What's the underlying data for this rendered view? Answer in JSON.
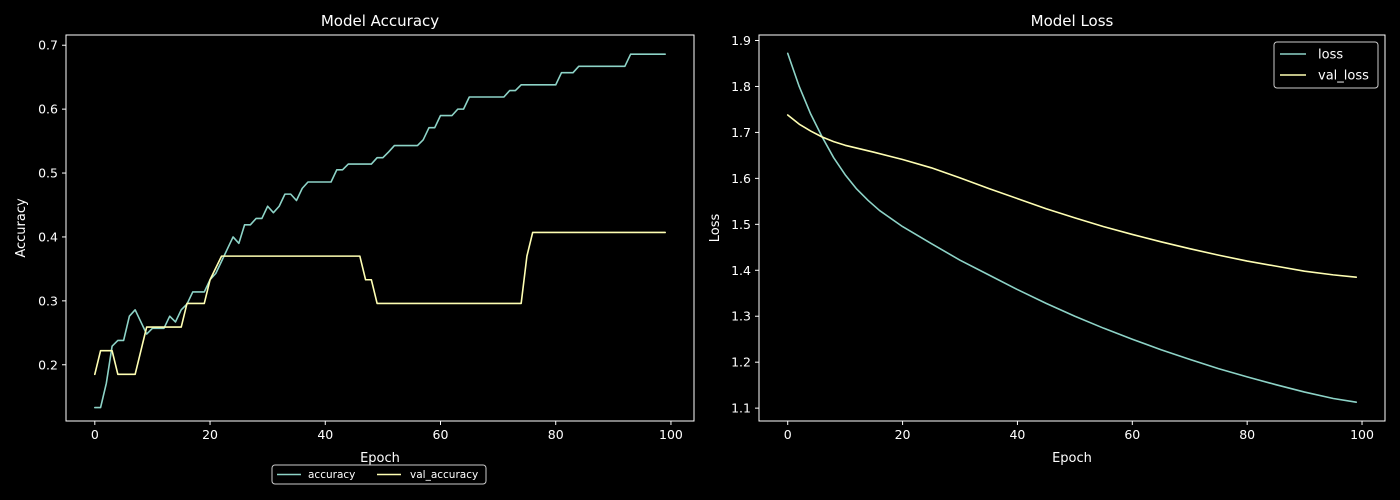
{
  "chart_data": [
    {
      "type": "line",
      "title": "Model Accuracy",
      "xlabel": "Epoch",
      "ylabel": "Accuracy",
      "xlim": [
        -5,
        104
      ],
      "ylim": [
        0.112,
        0.716
      ],
      "xticks": [
        0,
        20,
        40,
        60,
        80,
        100
      ],
      "yticks": [
        0.2,
        0.3,
        0.4,
        0.5,
        0.6,
        0.7
      ],
      "legend_placement": "below-center",
      "series": [
        {
          "name": "accuracy",
          "color": "#8dd3c7",
          "points": [
            [
              0,
              0.133
            ],
            [
              1,
              0.133
            ],
            [
              2,
              0.171
            ],
            [
              3,
              0.229
            ],
            [
              4,
              0.238
            ],
            [
              5,
              0.238
            ],
            [
              6,
              0.276
            ],
            [
              7,
              0.286
            ],
            [
              8,
              0.267
            ],
            [
              9,
              0.248
            ],
            [
              10,
              0.257
            ],
            [
              12,
              0.257
            ],
            [
              13,
              0.276
            ],
            [
              14,
              0.267
            ],
            [
              15,
              0.286
            ],
            [
              16,
              0.295
            ],
            [
              17,
              0.314
            ],
            [
              19,
              0.314
            ],
            [
              20,
              0.333
            ],
            [
              21,
              0.343
            ],
            [
              22,
              0.362
            ],
            [
              23,
              0.381
            ],
            [
              24,
              0.4
            ],
            [
              25,
              0.39
            ],
            [
              26,
              0.419
            ],
            [
              27,
              0.419
            ],
            [
              28,
              0.429
            ],
            [
              29,
              0.429
            ],
            [
              30,
              0.448
            ],
            [
              31,
              0.438
            ],
            [
              32,
              0.448
            ],
            [
              33,
              0.467
            ],
            [
              34,
              0.467
            ],
            [
              35,
              0.457
            ],
            [
              36,
              0.476
            ],
            [
              37,
              0.486
            ],
            [
              41,
              0.486
            ],
            [
              42,
              0.505
            ],
            [
              43,
              0.505
            ],
            [
              44,
              0.514
            ],
            [
              48,
              0.514
            ],
            [
              49,
              0.524
            ],
            [
              50,
              0.524
            ],
            [
              51,
              0.533
            ],
            [
              52,
              0.543
            ],
            [
              56,
              0.543
            ],
            [
              57,
              0.552
            ],
            [
              58,
              0.571
            ],
            [
              59,
              0.571
            ],
            [
              60,
              0.59
            ],
            [
              62,
              0.59
            ],
            [
              63,
              0.6
            ],
            [
              64,
              0.6
            ],
            [
              65,
              0.619
            ],
            [
              71,
              0.619
            ],
            [
              72,
              0.629
            ],
            [
              73,
              0.629
            ],
            [
              74,
              0.638
            ],
            [
              80,
              0.638
            ],
            [
              81,
              0.657
            ],
            [
              83,
              0.657
            ],
            [
              84,
              0.667
            ],
            [
              92,
              0.667
            ],
            [
              93,
              0.686
            ],
            [
              99,
              0.686
            ]
          ]
        },
        {
          "name": "val_accuracy",
          "color": "#ffffb3",
          "points": [
            [
              0,
              0.185
            ],
            [
              1,
              0.222
            ],
            [
              3,
              0.222
            ],
            [
              4,
              0.185
            ],
            [
              7,
              0.185
            ],
            [
              8,
              0.222
            ],
            [
              9,
              0.259
            ],
            [
              15,
              0.259
            ],
            [
              16,
              0.296
            ],
            [
              19,
              0.296
            ],
            [
              20,
              0.333
            ],
            [
              22,
              0.37
            ],
            [
              46,
              0.37
            ],
            [
              47,
              0.333
            ],
            [
              48,
              0.333
            ],
            [
              49,
              0.296
            ],
            [
              74,
              0.296
            ],
            [
              75,
              0.37
            ],
            [
              76,
              0.407
            ],
            [
              99,
              0.407
            ]
          ]
        }
      ]
    },
    {
      "type": "line",
      "title": "Model Loss",
      "xlabel": "Epoch",
      "ylabel": "Loss",
      "xlim": [
        -5,
        104
      ],
      "ylim": [
        1.072,
        1.912
      ],
      "xticks": [
        0,
        20,
        40,
        60,
        80,
        100
      ],
      "yticks": [
        1.1,
        1.2,
        1.3,
        1.4,
        1.5,
        1.6,
        1.7,
        1.8,
        1.9
      ],
      "legend_placement": "top-right",
      "series": [
        {
          "name": "loss",
          "color": "#8dd3c7",
          "points": [
            [
              0,
              1.872
            ],
            [
              2,
              1.8
            ],
            [
              4,
              1.74
            ],
            [
              6,
              1.69
            ],
            [
              8,
              1.645
            ],
            [
              10,
              1.608
            ],
            [
              12,
              1.577
            ],
            [
              14,
              1.552
            ],
            [
              16,
              1.53
            ],
            [
              20,
              1.495
            ],
            [
              25,
              1.458
            ],
            [
              30,
              1.422
            ],
            [
              35,
              1.39
            ],
            [
              40,
              1.358
            ],
            [
              45,
              1.328
            ],
            [
              50,
              1.3
            ],
            [
              55,
              1.274
            ],
            [
              60,
              1.25
            ],
            [
              65,
              1.227
            ],
            [
              70,
              1.206
            ],
            [
              75,
              1.186
            ],
            [
              80,
              1.168
            ],
            [
              85,
              1.151
            ],
            [
              90,
              1.135
            ],
            [
              95,
              1.121
            ],
            [
              99,
              1.113
            ]
          ]
        },
        {
          "name": "val_loss",
          "color": "#ffffb3",
          "points": [
            [
              0,
              1.738
            ],
            [
              2,
              1.718
            ],
            [
              4,
              1.703
            ],
            [
              6,
              1.69
            ],
            [
              8,
              1.68
            ],
            [
              10,
              1.672
            ],
            [
              15,
              1.657
            ],
            [
              20,
              1.641
            ],
            [
              25,
              1.623
            ],
            [
              30,
              1.601
            ],
            [
              35,
              1.578
            ],
            [
              40,
              1.556
            ],
            [
              45,
              1.534
            ],
            [
              50,
              1.514
            ],
            [
              55,
              1.495
            ],
            [
              60,
              1.478
            ],
            [
              65,
              1.462
            ],
            [
              70,
              1.447
            ],
            [
              75,
              1.433
            ],
            [
              80,
              1.42
            ],
            [
              85,
              1.409
            ],
            [
              90,
              1.398
            ],
            [
              95,
              1.39
            ],
            [
              99,
              1.385
            ]
          ]
        }
      ]
    }
  ]
}
